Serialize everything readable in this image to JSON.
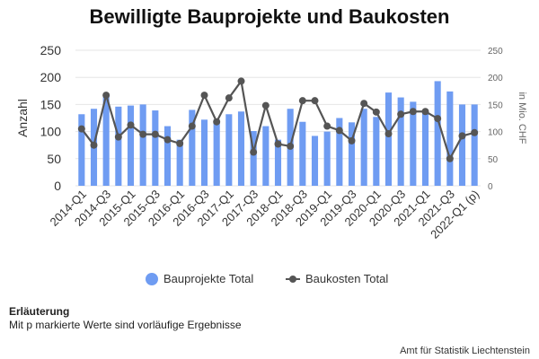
{
  "page": {
    "title": "Bewilligte Bauprojekte und Baukosten",
    "note_title": "Erläuterung",
    "note_text": "Mit p markierte Werte sind vorläufige Ergebnisse",
    "source": "Amt für Statistik Liechtenstein"
  },
  "legend": {
    "bars": "Bauprojekte Total",
    "line": "Baukosten Total"
  },
  "colors": {
    "bars": "#6f9cf2",
    "line": "#555555",
    "grid": "#e6e6e6"
  },
  "chart_data": {
    "type": "bar",
    "categories": [
      "2014-Q1",
      "2014-Q2",
      "2014-Q3",
      "2014-Q4",
      "2015-Q1",
      "2015-Q2",
      "2015-Q3",
      "2015-Q4",
      "2016-Q1",
      "2016-Q2",
      "2016-Q3",
      "2016-Q4",
      "2017-Q1",
      "2017-Q2",
      "2017-Q3",
      "2017-Q4",
      "2018-Q1",
      "2018-Q2",
      "2018-Q3",
      "2018-Q4",
      "2019-Q1",
      "2019-Q2",
      "2019-Q3",
      "2019-Q4",
      "2020-Q1",
      "2020-Q2",
      "2020-Q3",
      "2020-Q4",
      "2021-Q1",
      "2021-Q2",
      "2021-Q3",
      "2021-Q4",
      "2022-Q1 (p)"
    ],
    "x_tick_labels": [
      "2014-Q1",
      "2014-Q3",
      "2015-Q1",
      "2015-Q3",
      "2016-Q1",
      "2016-Q3",
      "2017-Q1",
      "2017-Q3",
      "2018-Q1",
      "2018-Q3",
      "2019-Q1",
      "2019-Q3",
      "2020-Q1",
      "2020-Q3",
      "2021-Q1",
      "2021-Q3",
      "2022-Q1 (p)"
    ],
    "series": [
      {
        "name": "Bauprojekte Total",
        "type": "bar",
        "axis": "left",
        "values": [
          132,
          142,
          165,
          146,
          148,
          150,
          139,
          110,
          85,
          140,
          122,
          122,
          132,
          137,
          101,
          110,
          85,
          142,
          118,
          92,
          100,
          125,
          117,
          142,
          127,
          172,
          163,
          155,
          140,
          193,
          174,
          150,
          150
        ]
      },
      {
        "name": "Baukosten Total",
        "type": "line",
        "axis": "right",
        "values": [
          105,
          75,
          167,
          90,
          112,
          95,
          95,
          85,
          78,
          110,
          167,
          118,
          162,
          193,
          62,
          148,
          77,
          73,
          157,
          157,
          110,
          102,
          83,
          152,
          136,
          96,
          132,
          137,
          137,
          124,
          50,
          92,
          98
        ]
      }
    ],
    "ylabel": "Anzahl",
    "y2label": "in Mio. CHF",
    "ylim": [
      0,
      250
    ],
    "y2lim": [
      0,
      250
    ],
    "yticks": [
      "0",
      "50",
      "100",
      "150",
      "200",
      "250"
    ],
    "y2ticks": [
      "0",
      "50",
      "100",
      "150",
      "200",
      "250"
    ],
    "grid": true,
    "legend_position": "bottom"
  }
}
